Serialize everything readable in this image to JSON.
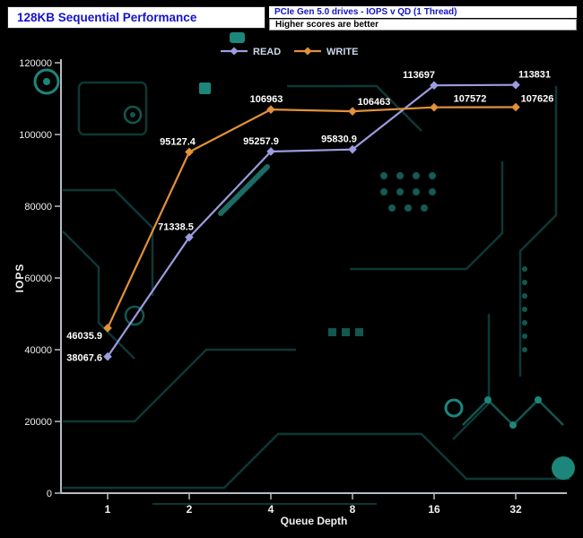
{
  "header": {
    "title": "128KB Sequential Performance",
    "info_line1": "PCIe Gen 5.0 drives - IOPS v QD (1 Thread)",
    "info_line2": "Higher scores are better"
  },
  "colors": {
    "read_series": "#9c9ce0",
    "write_series": "#e2913a",
    "heading_text": "#1414c8",
    "axis": "#b8bcc2",
    "tick_text": "#f0f0f0",
    "label_text": "#ffffff",
    "legend_text": "#ccd7ea",
    "background": "#000000",
    "circuit_accent": "#1e8e82"
  },
  "chart_data": {
    "type": "line",
    "title": "128KB Sequential Performance",
    "subtitle": "PCIe Gen 5.0 drives - IOPS v QD (1 Thread)",
    "note": "Higher scores are better",
    "xlabel": "Queue Depth",
    "ylabel": "IOPS",
    "categories": [
      "1",
      "2",
      "4",
      "8",
      "16",
      "32"
    ],
    "ylim": [
      0,
      120000
    ],
    "ytick_step": 20000,
    "grid": false,
    "legend_position": "top",
    "series": [
      {
        "name": "READ",
        "color_key": "read_series",
        "values": [
          38067.6,
          71338.5,
          95257.9,
          95830.9,
          113697,
          113831
        ],
        "point_labels": [
          "38067.6",
          "71338.5",
          "95257.9",
          "95830.9",
          "113697",
          "113831"
        ]
      },
      {
        "name": "WRITE",
        "color_key": "write_series",
        "values": [
          46035.9,
          95127.4,
          106963,
          106463,
          107572,
          107626
        ],
        "point_labels": [
          "46035.9",
          "95127.4",
          "106963",
          "106463",
          "107572",
          "107626"
        ]
      }
    ]
  }
}
